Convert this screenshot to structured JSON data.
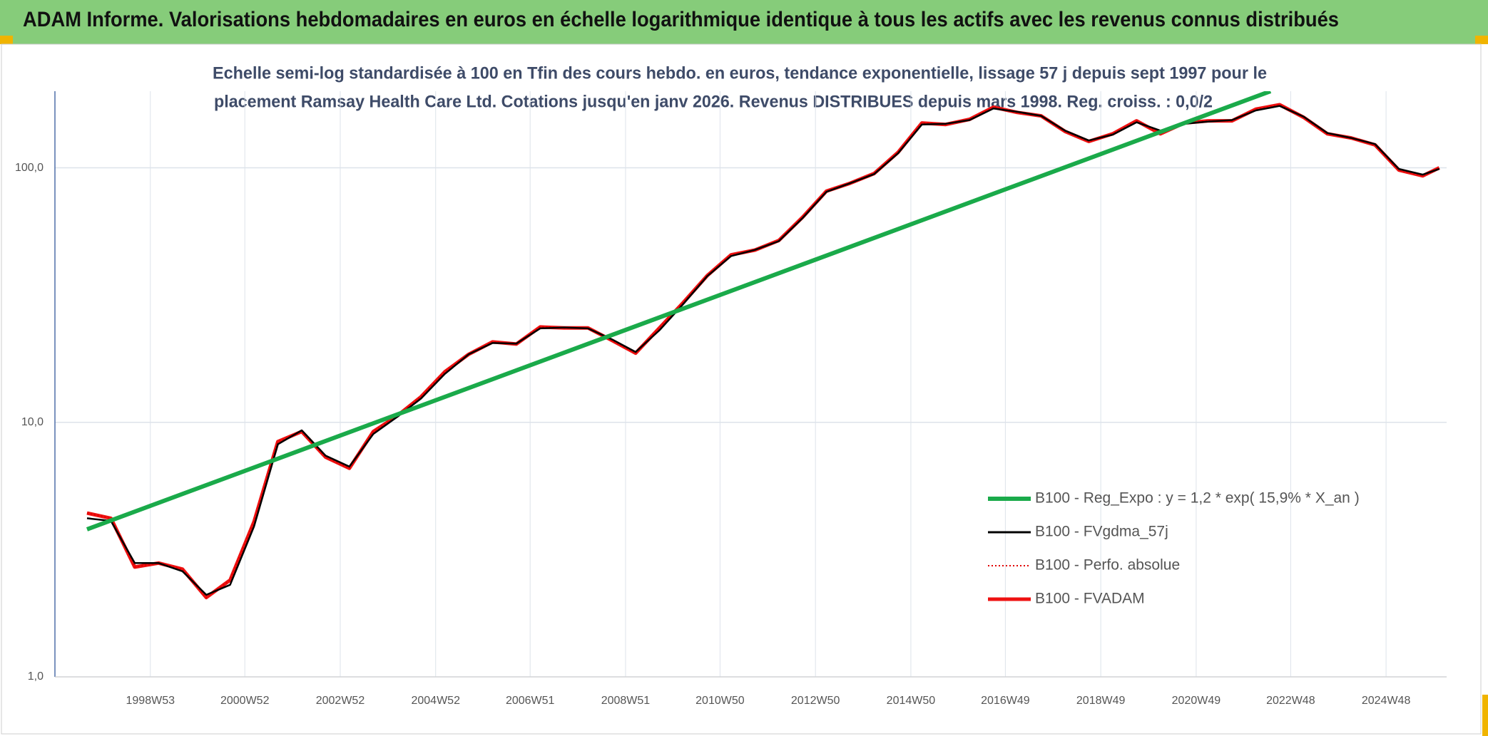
{
  "header": {
    "title": "ADAM Informe. Valorisations hebdomadaires en euros en échelle logarithmique identique à tous les actifs avec les revenus connus distribués"
  },
  "chart_data": {
    "type": "line",
    "title": [
      "Echelle semi-log standardisée à 100 en Tfin des cours hebdo. en euros, tendance exponentielle, lissage 57 j depuis sept 1997 pour le",
      "placement Ramsay Health Care Ltd. Cotations jusqu'en janv 2026. Revenus DISTRIBUES depuis mars 1998. Reg. croiss. : 0,0/2"
    ],
    "log_scale": true,
    "grid": true,
    "legend": "right",
    "xlim": [
      "1997W01",
      "2026W10"
    ],
    "xticks": [
      "1998W53",
      "2000W52",
      "2002W52",
      "2004W52",
      "2006W51",
      "2008W51",
      "2010W50",
      "2012W50",
      "2014W50",
      "2016W49",
      "2018W49",
      "2020W49",
      "2022W48",
      "2024W48"
    ],
    "ylim": [
      1,
      200
    ],
    "yticks": [
      {
        "value": 1,
        "label": "1,0"
      },
      {
        "value": 10,
        "label": "10,0"
      },
      {
        "value": 100,
        "label": "100,0"
      }
    ],
    "x": [
      "1997W36",
      "1998W10",
      "1998W36",
      "1999W10",
      "1999W36",
      "2000W10",
      "2000W36",
      "2001W10",
      "2001W36",
      "2002W10",
      "2002W36",
      "2003W10",
      "2003W36",
      "2004W10",
      "2004W36",
      "2005W10",
      "2005W36",
      "2006W10",
      "2006W36",
      "2007W10",
      "2007W36",
      "2008W10",
      "2008W36",
      "2009W10",
      "2009W36",
      "2010W10",
      "2010W36",
      "2011W10",
      "2011W36",
      "2012W10",
      "2012W36",
      "2013W10",
      "2013W36",
      "2014W10",
      "2014W36",
      "2015W10",
      "2015W36",
      "2016W10",
      "2016W36",
      "2017W10",
      "2017W36",
      "2018W10",
      "2018W36",
      "2019W10",
      "2019W36",
      "2020W10",
      "2020W36",
      "2021W10",
      "2021W36",
      "2022W10",
      "2022W36",
      "2023W10",
      "2023W36",
      "2024W10",
      "2024W36",
      "2025W10",
      "2025W36",
      "2026W02"
    ],
    "series": [
      {
        "name": "B100 - Reg_Expo : y = 1,2 * exp( 15,9% *  X_an )",
        "color": "#1aaa4a",
        "style": "solid",
        "x": [
          "1997W36",
          "2022W26"
        ],
        "values": [
          3.8,
          200
        ]
      },
      {
        "name": "B100 - FVgdma_57j",
        "color": "#000000",
        "style": "solid",
        "values": [
          4.2,
          4.1,
          2.8,
          2.8,
          2.6,
          2.1,
          2.3,
          3.9,
          8.2,
          9.3,
          7.4,
          6.7,
          9.0,
          10.5,
          12.4,
          15.5,
          18.5,
          20.5,
          20.4,
          23.4,
          23.6,
          23.4,
          21.2,
          18.9,
          23.0,
          29.2,
          37.5,
          45.0,
          47.6,
          51.5,
          63.5,
          80.5,
          87.0,
          94.5,
          114,
          148,
          149,
          154,
          171,
          166,
          160,
          140,
          128,
          135,
          151,
          140,
          149,
          152,
          154,
          168,
          175,
          159,
          137,
          131,
          124,
          99,
          94,
          99
        ]
      },
      {
        "name": "B100 - Perfo. absolue",
        "color": "#e00000",
        "style": "dotted",
        "values": [
          4.4,
          4.2,
          2.7,
          2.8,
          2.65,
          2.05,
          2.4,
          4.07,
          8.4,
          9.2,
          7.3,
          6.6,
          9.2,
          10.6,
          12.6,
          15.8,
          18.5,
          20.7,
          20.3,
          23.7,
          23.5,
          23.5,
          21.0,
          18.7,
          23.5,
          29.6,
          37.7,
          45.5,
          47.5,
          51.8,
          64,
          81,
          87,
          95,
          115,
          150,
          148,
          155,
          173,
          165,
          160,
          139,
          127,
          136,
          153,
          136,
          150,
          153,
          153,
          170,
          177,
          158,
          136,
          131,
          123,
          98,
          93,
          100
        ]
      },
      {
        "name": "B100 - FVADAM",
        "color": "#ee1111",
        "style": "solid",
        "values": [
          4.4,
          4.2,
          2.7,
          2.8,
          2.65,
          2.05,
          2.4,
          4.07,
          8.4,
          9.2,
          7.3,
          6.6,
          9.2,
          10.6,
          12.6,
          15.8,
          18.5,
          20.7,
          20.3,
          23.7,
          23.5,
          23.5,
          21.0,
          18.7,
          23.5,
          29.6,
          37.7,
          45.5,
          47.5,
          51.8,
          64,
          81,
          87,
          95,
          115,
          150,
          148,
          155,
          173,
          165,
          160,
          139,
          127,
          136,
          153,
          136,
          150,
          153,
          153,
          170,
          177,
          158,
          136,
          131,
          123,
          98,
          93,
          100
        ]
      }
    ]
  }
}
